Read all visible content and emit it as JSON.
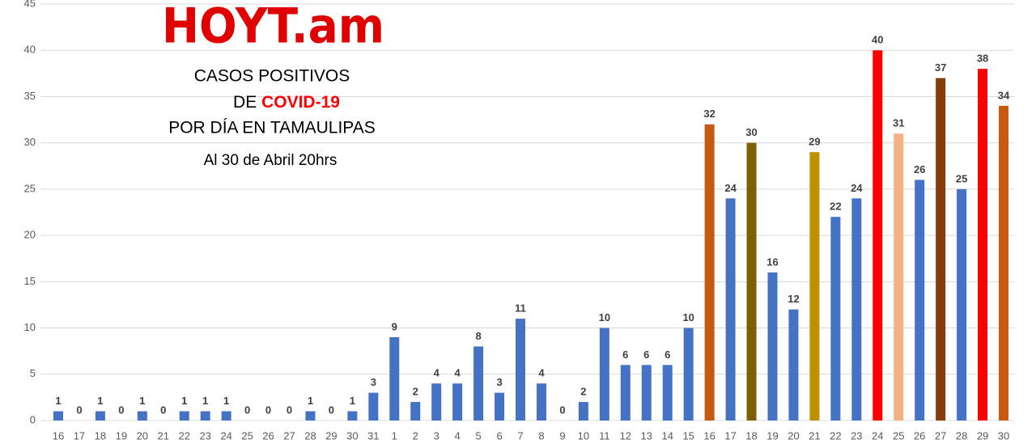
{
  "chart_data": {
    "type": "bar",
    "logo": "HOYT.am",
    "title": {
      "line1": "CASOS POSITIVOS",
      "line2_prefix": "DE",
      "line2_highlight": "COVID-19",
      "line3": "POR DÍA EN TAMAULIPAS"
    },
    "subtitle": "Al 30 de Abril 20hrs",
    "categories": [
      "16",
      "17",
      "18",
      "19",
      "20",
      "21",
      "22",
      "23",
      "24",
      "25",
      "26",
      "27",
      "28",
      "29",
      "30",
      "31",
      "1",
      "2",
      "3",
      "4",
      "5",
      "6",
      "7",
      "8",
      "9",
      "10",
      "11",
      "12",
      "13",
      "14",
      "15",
      "16",
      "17",
      "18",
      "19",
      "20",
      "21",
      "22",
      "23",
      "24",
      "25",
      "26",
      "27",
      "28",
      "29",
      "30"
    ],
    "values": [
      1,
      0,
      1,
      0,
      1,
      0,
      1,
      1,
      1,
      0,
      0,
      0,
      1,
      0,
      1,
      3,
      9,
      2,
      4,
      4,
      8,
      3,
      11,
      4,
      0,
      2,
      10,
      6,
      6,
      6,
      10,
      32,
      24,
      30,
      16,
      12,
      29,
      22,
      24,
      40,
      31,
      26,
      37,
      25,
      38,
      34
    ],
    "colors": [
      "#4472c4",
      "#4472c4",
      "#4472c4",
      "#4472c4",
      "#4472c4",
      "#4472c4",
      "#4472c4",
      "#4472c4",
      "#4472c4",
      "#4472c4",
      "#4472c4",
      "#4472c4",
      "#4472c4",
      "#4472c4",
      "#4472c4",
      "#4472c4",
      "#4472c4",
      "#4472c4",
      "#4472c4",
      "#4472c4",
      "#4472c4",
      "#4472c4",
      "#4472c4",
      "#4472c4",
      "#4472c4",
      "#4472c4",
      "#4472c4",
      "#4472c4",
      "#4472c4",
      "#4472c4",
      "#4472c4",
      "#c55a11",
      "#4472c4",
      "#7f6000",
      "#4472c4",
      "#4472c4",
      "#bf9000",
      "#4472c4",
      "#4472c4",
      "#ff0000",
      "#f4b183",
      "#4472c4",
      "#843c0c",
      "#4472c4",
      "#ff0000",
      "#c55a11"
    ],
    "ylim": [
      0,
      45
    ],
    "yticks": [
      0,
      5,
      10,
      15,
      20,
      25,
      30,
      35,
      40,
      45
    ],
    "grid": true
  }
}
